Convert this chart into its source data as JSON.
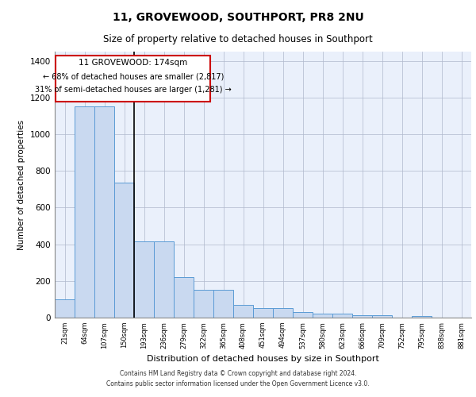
{
  "title": "11, GROVEWOOD, SOUTHPORT, PR8 2NU",
  "subtitle": "Size of property relative to detached houses in Southport",
  "xlabel": "Distribution of detached houses by size in Southport",
  "ylabel": "Number of detached properties",
  "categories": [
    "21sqm",
    "64sqm",
    "107sqm",
    "150sqm",
    "193sqm",
    "236sqm",
    "279sqm",
    "322sqm",
    "365sqm",
    "408sqm",
    "451sqm",
    "494sqm",
    "537sqm",
    "580sqm",
    "623sqm",
    "666sqm",
    "709sqm",
    "752sqm",
    "795sqm",
    "838sqm",
    "881sqm"
  ],
  "values": [
    100,
    1150,
    1150,
    735,
    415,
    415,
    220,
    150,
    150,
    70,
    50,
    50,
    30,
    20,
    20,
    15,
    15,
    2,
    10,
    2,
    2
  ],
  "bar_color": "#c9d9f0",
  "bar_edge_color": "#5b9bd5",
  "property_line_bar_index": 3,
  "annotation_text_line1": "11 GROVEWOOD: 174sqm",
  "annotation_text_line2": "← 68% of detached houses are smaller (2,817)",
  "annotation_text_line3": "31% of semi-detached houses are larger (1,281) →",
  "ylim": [
    0,
    1450
  ],
  "yticks": [
    0,
    200,
    400,
    600,
    800,
    1000,
    1200,
    1400
  ],
  "background_color": "#eaf0fb",
  "footer_line1": "Contains HM Land Registry data © Crown copyright and database right 2024.",
  "footer_line2": "Contains public sector information licensed under the Open Government Licence v3.0."
}
